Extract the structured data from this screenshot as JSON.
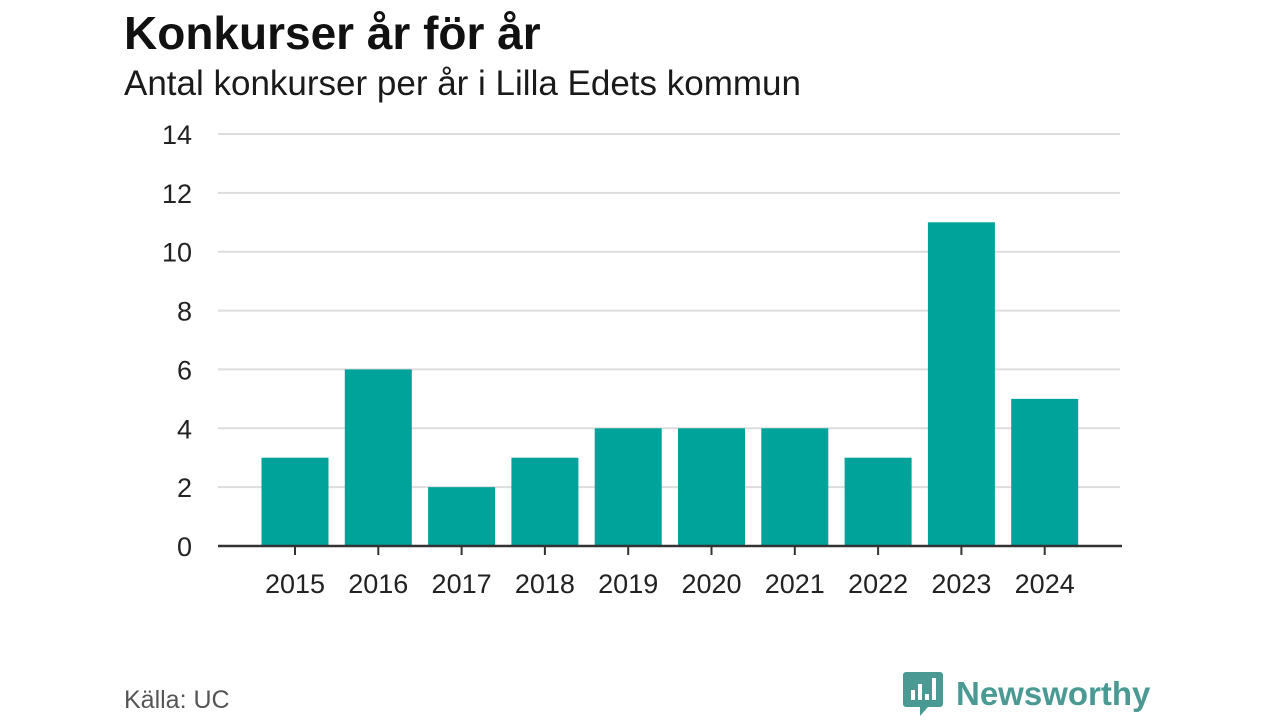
{
  "header": {
    "title": "Konkurser år för år",
    "subtitle": "Antal konkurser per år i Lilla Edets kommun"
  },
  "footer": {
    "source": "Källa: UC",
    "brand": "Newsworthy"
  },
  "colors": {
    "bar": "#00a39a",
    "gridline": "#dddddd",
    "axis": "#333333",
    "brand": "#4a9a93"
  },
  "chart_data": {
    "type": "bar",
    "title": "Konkurser år för år",
    "subtitle": "Antal konkurser per år i Lilla Edets kommun",
    "xlabel": "",
    "ylabel": "",
    "categories": [
      "2015",
      "2016",
      "2017",
      "2018",
      "2019",
      "2020",
      "2021",
      "2022",
      "2023",
      "2024"
    ],
    "values": [
      3,
      6,
      2,
      3,
      4,
      4,
      4,
      3,
      11,
      5
    ],
    "ylim": [
      0,
      14
    ],
    "yticks": [
      0,
      2,
      4,
      6,
      8,
      10,
      12,
      14
    ],
    "grid": true,
    "legend": "none"
  }
}
